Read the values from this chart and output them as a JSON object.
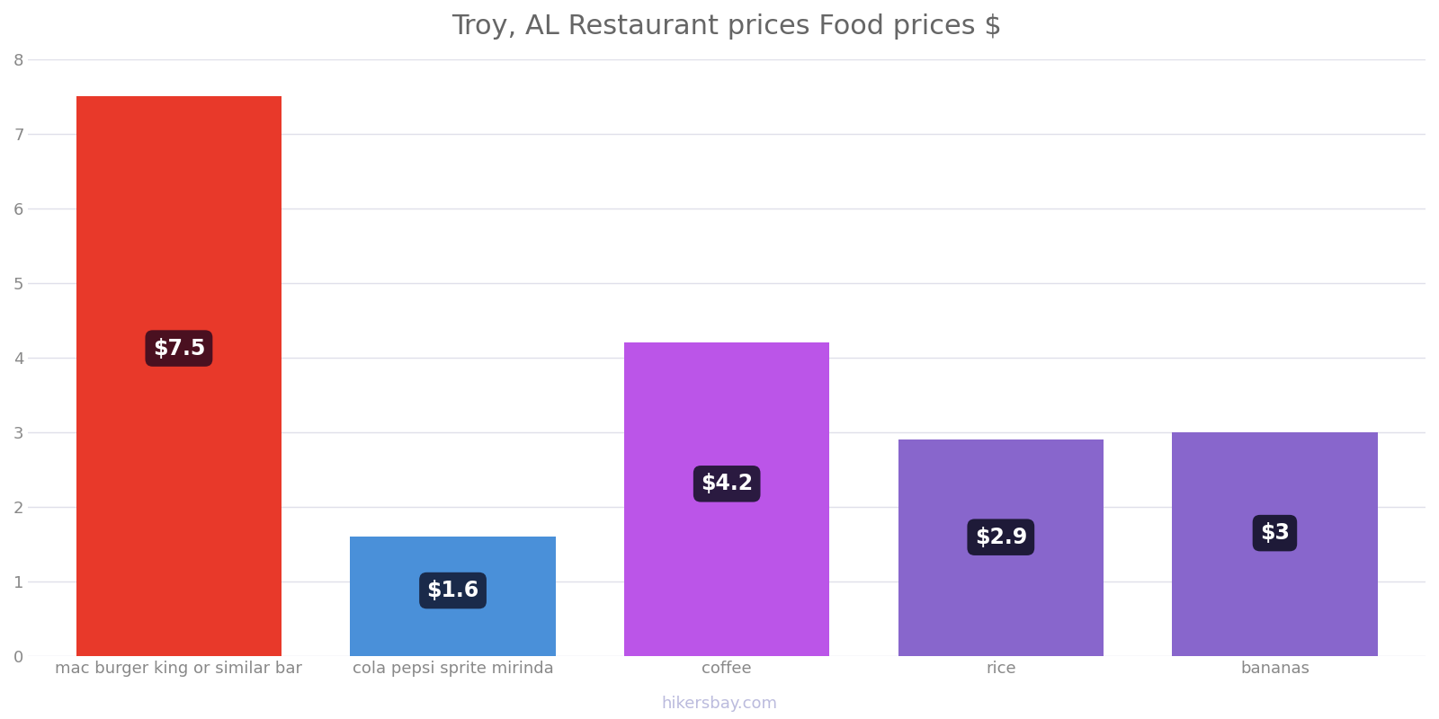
{
  "title": "Troy, AL Restaurant prices Food prices $",
  "categories": [
    "mac burger king or similar bar",
    "cola pepsi sprite mirinda",
    "coffee",
    "rice",
    "bananas"
  ],
  "values": [
    7.5,
    1.6,
    4.2,
    2.9,
    3.0
  ],
  "bar_colors": [
    "#e8392a",
    "#4a90d9",
    "#bb55e8",
    "#8866cc",
    "#8866cc"
  ],
  "label_texts": [
    "$7.5",
    "$1.6",
    "$4.2",
    "$2.9",
    "$3"
  ],
  "label_bg_colors": [
    "#4a1020",
    "#1a2a4a",
    "#2a1a40",
    "#1e1a38",
    "#1e1a38"
  ],
  "ylim": [
    0,
    8
  ],
  "yticks": [
    0,
    1,
    2,
    3,
    4,
    5,
    6,
    7,
    8
  ],
  "title_fontsize": 22,
  "tick_fontsize": 13,
  "label_fontsize": 17,
  "watermark": "hikersbay.com",
  "bg_color": "#ffffff",
  "grid_color": "#e0e0ea"
}
